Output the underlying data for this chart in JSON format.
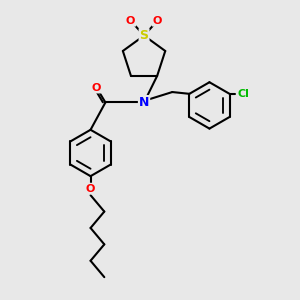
{
  "background_color": "#e8e8e8",
  "bond_color": "#000000",
  "bond_lw": 1.5,
  "S_color": "#cccc00",
  "O_color": "#ff0000",
  "N_color": "#0000ff",
  "Cl_color": "#00bb00",
  "figsize": [
    3.0,
    3.0
  ],
  "dpi": 100,
  "xlim": [
    0,
    10
  ],
  "ylim": [
    0,
    10
  ]
}
